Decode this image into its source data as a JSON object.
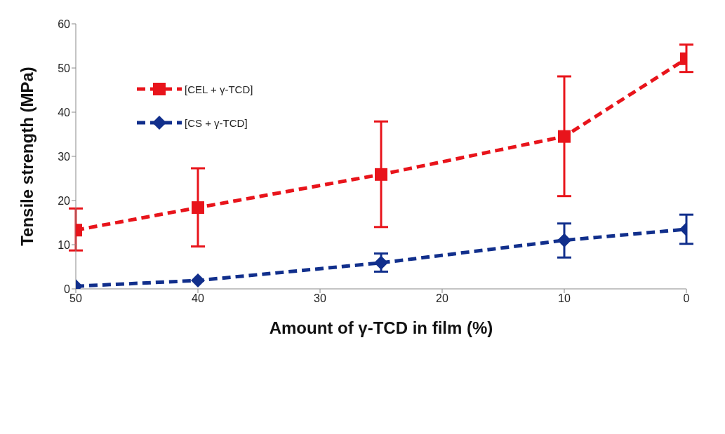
{
  "chart_data": {
    "type": "line",
    "xlabel": "Amount of γ-TCD in film (%)",
    "ylabel": "Tensile strength (MPa)",
    "x": [
      50,
      40,
      25,
      10,
      0
    ],
    "xlim": [
      50,
      0
    ],
    "xticks": [
      50,
      40,
      30,
      20,
      10,
      0
    ],
    "ylim": [
      0,
      60
    ],
    "yticks": [
      0,
      10,
      20,
      30,
      40,
      50,
      60
    ],
    "grid": false,
    "legend": "top left",
    "line_style": "dashed",
    "series": [
      {
        "name": "[CEL + γ-TCD]",
        "color": "#e8141b",
        "marker": "square",
        "values": [
          13.3,
          18.4,
          25.9,
          34.5,
          52.1
        ],
        "errors": [
          [
            8.7,
            18.2
          ],
          [
            9.6,
            27.3
          ],
          [
            14.0,
            37.9
          ],
          [
            21.0,
            48.1
          ],
          [
            49.1,
            55.3
          ]
        ]
      },
      {
        "name": "[CS + γ-TCD]",
        "color": "#112f8c",
        "marker": "diamond",
        "values": [
          0.6,
          1.9,
          5.9,
          11.0,
          13.5
        ],
        "errors": [
          null,
          null,
          [
            3.9,
            8.0
          ],
          [
            7.1,
            14.8
          ],
          [
            10.2,
            16.8
          ]
        ]
      }
    ]
  }
}
